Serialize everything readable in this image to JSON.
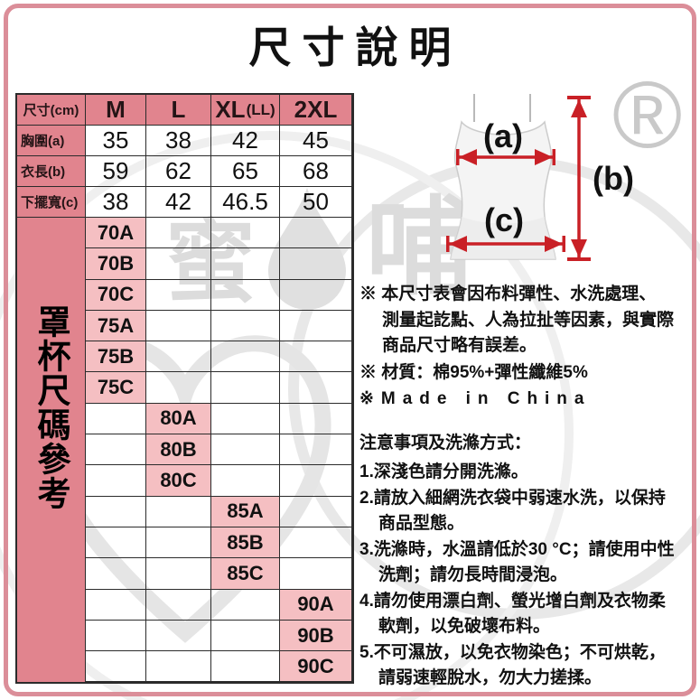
{
  "page": {
    "title": "尺寸說明",
    "registered_mark": "®"
  },
  "watermark": {
    "brand_char_1": "蜜",
    "brand_char_2": "哺"
  },
  "size_table": {
    "unit_header": "尺寸(cm)",
    "columns": [
      {
        "text": "M",
        "suffix": ""
      },
      {
        "text": "L",
        "suffix": ""
      },
      {
        "text": "XL",
        "suffix": "(LL)"
      },
      {
        "text": "2XL",
        "suffix": ""
      }
    ],
    "rows": [
      {
        "label": "胸圍(a)",
        "values": [
          "35",
          "38",
          "42",
          "45"
        ]
      },
      {
        "label": "衣長(b)",
        "values": [
          "59",
          "62",
          "65",
          "68"
        ]
      },
      {
        "label": "下擺寬(c)",
        "values": [
          "38",
          "42",
          "46.5",
          "50"
        ]
      }
    ]
  },
  "cup_reference": {
    "side_label": "罩杯尺碼參考",
    "rows": [
      {
        "column": "M",
        "label": "70A"
      },
      {
        "column": "M",
        "label": "70B"
      },
      {
        "column": "M",
        "label": "70C"
      },
      {
        "column": "M",
        "label": "75A"
      },
      {
        "column": "M",
        "label": "75B"
      },
      {
        "column": "M",
        "label": "75C"
      },
      {
        "column": "L",
        "label": "80A"
      },
      {
        "column": "L",
        "label": "80B"
      },
      {
        "column": "L",
        "label": "80C"
      },
      {
        "column": "XL",
        "label": "85A"
      },
      {
        "column": "XL",
        "label": "85B"
      },
      {
        "column": "XL",
        "label": "85C"
      },
      {
        "column": "2XL",
        "label": "90A"
      },
      {
        "column": "2XL",
        "label": "90B"
      },
      {
        "column": "2XL",
        "label": "90C"
      }
    ]
  },
  "diagram": {
    "label_a": "(a)",
    "label_b": "(b)",
    "label_c": "(c)"
  },
  "notes": {
    "disclaimer_lines": [
      "※ 本尺寸表會因布料彈性、水洗處理、",
      "測量起訖點、人為拉扯等因素，與實際",
      "商品尺寸略有誤差。"
    ],
    "material": "※ 材質：棉95%+彈性纖維5%",
    "origin": "※Made in China"
  },
  "care": {
    "heading": "注意事項及洗滌方式：",
    "items": [
      [
        "1.深淺色請分開洗滌。"
      ],
      [
        "2.請放入細網洗衣袋中弱速水洗，以保持",
        "商品型態。"
      ],
      [
        "3.洗滌時，水溫請低於30 °C；請使用中性",
        "洗劑；請勿長時間浸泡。"
      ],
      [
        "4.請勿使用漂白劑、螢光增白劑及衣物柔",
        "軟劑，以免破壞布料。"
      ],
      [
        "5.不可濕放，以免衣物染色；不可烘乾，",
        "請弱速輕脫水，勿大力搓揉。"
      ]
    ]
  },
  "colors": {
    "accent_pink": "#e1848e",
    "light_pink": "#f5bfc2",
    "frame_pink": "#db8e99",
    "arrow_red": "#c92026",
    "watermark_grey": "#dcdcdc"
  }
}
